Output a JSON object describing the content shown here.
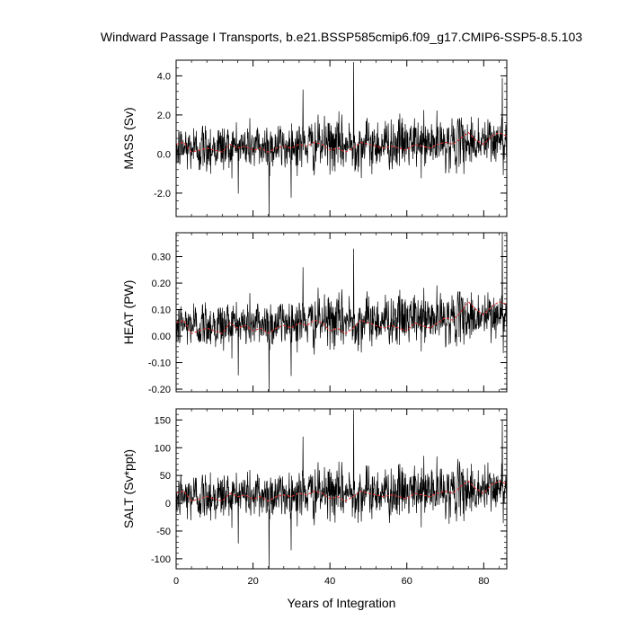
{
  "title": "Windward Passage I Transports, b.e21.BSSP585cmip6.f09_g17.CMIP6-SSP5-8.5.103",
  "chart_data": [
    {
      "type": "line",
      "ylabel": "MASS (Sv)",
      "xlim": [
        0,
        86
      ],
      "ylim": [
        -3.2,
        4.8
      ],
      "yticks": [
        -2.0,
        0.0,
        2.0,
        4.0
      ],
      "ytick_labels": [
        "-2.0",
        "0.0",
        "2.0",
        "4.0"
      ],
      "series": [
        {
          "color": "#000000",
          "kind": "monthly-noise",
          "base": 0.3,
          "sd": 0.75,
          "trend": 0.004,
          "spikes": [
            [
              46.2,
              4.7
            ],
            [
              24.2,
              -3.2
            ],
            [
              84.8,
              3.9
            ],
            [
              33.0,
              3.3
            ]
          ]
        },
        {
          "color": "#e03030",
          "kind": "smoothed-mean",
          "x": [
            0,
            2,
            4,
            6,
            8,
            10,
            12,
            14,
            16,
            18,
            20,
            22,
            24,
            26,
            28,
            30,
            32,
            34,
            36,
            38,
            40,
            42,
            44,
            46,
            48,
            50,
            52,
            54,
            56,
            58,
            60,
            62,
            64,
            66,
            68,
            70,
            72,
            74,
            76,
            78,
            80,
            82,
            84,
            86
          ],
          "y": [
            0.5,
            0.6,
            0.1,
            0.2,
            0.3,
            0.2,
            0.1,
            0.5,
            0.3,
            0.4,
            0.2,
            0.3,
            0.1,
            0.3,
            0.4,
            0.3,
            0.5,
            0.4,
            0.6,
            0.5,
            0.2,
            0.3,
            0.1,
            0.3,
            0.6,
            0.5,
            0.4,
            0.3,
            0.4,
            0.3,
            0.2,
            0.5,
            0.4,
            0.3,
            0.5,
            0.6,
            0.5,
            0.8,
            1.1,
            0.7,
            0.5,
            0.9,
            1.1,
            0.9
          ]
        }
      ]
    },
    {
      "type": "line",
      "ylabel": "HEAT (PW)",
      "xlim": [
        0,
        86
      ],
      "ylim": [
        -0.21,
        0.39
      ],
      "yticks": [
        -0.2,
        -0.1,
        0.0,
        0.1,
        0.2,
        0.3
      ],
      "ytick_labels": [
        "-0.20",
        "-0.10",
        "0.00",
        "0.10",
        "0.20",
        "0.30"
      ],
      "series": [
        {
          "color": "#000000",
          "kind": "monthly-noise",
          "base": 0.04,
          "sd": 0.055,
          "trend": 0.0004,
          "spikes": [
            [
              46.2,
              0.33
            ],
            [
              24.2,
              -0.21
            ],
            [
              84.8,
              0.39
            ],
            [
              33.0,
              0.26
            ]
          ]
        },
        {
          "color": "#e03030",
          "kind": "smoothed-mean",
          "x": [
            0,
            2,
            4,
            6,
            8,
            10,
            12,
            14,
            16,
            18,
            20,
            22,
            24,
            26,
            28,
            30,
            32,
            34,
            36,
            38,
            40,
            42,
            44,
            46,
            48,
            50,
            52,
            54,
            56,
            58,
            60,
            62,
            64,
            66,
            68,
            70,
            72,
            74,
            76,
            78,
            80,
            82,
            84,
            86
          ],
          "y": [
            0.05,
            0.06,
            0.01,
            0.02,
            0.03,
            0.02,
            0.01,
            0.05,
            0.03,
            0.04,
            0.02,
            0.03,
            0.01,
            0.03,
            0.04,
            0.03,
            0.05,
            0.04,
            0.06,
            0.05,
            0.02,
            0.03,
            0.01,
            0.03,
            0.06,
            0.05,
            0.04,
            0.03,
            0.04,
            0.03,
            0.02,
            0.05,
            0.04,
            0.03,
            0.05,
            0.07,
            0.06,
            0.09,
            0.13,
            0.1,
            0.08,
            0.11,
            0.13,
            0.12
          ]
        }
      ]
    },
    {
      "type": "line",
      "ylabel": "SALT (Sv*ppt)",
      "xlim": [
        0,
        86
      ],
      "ylim": [
        -118,
        170
      ],
      "yticks": [
        -100,
        -50,
        0,
        50,
        100,
        150
      ],
      "ytick_labels": [
        "-100",
        "-50",
        "0",
        "50",
        "100",
        "150"
      ],
      "xlabel": "Years of Integration",
      "xticks": [
        0,
        20,
        40,
        60,
        80
      ],
      "xtick_labels": [
        "0",
        "20",
        "40",
        "60",
        "80"
      ],
      "series": [
        {
          "color": "#000000",
          "kind": "monthly-noise",
          "base": 12,
          "sd": 27,
          "trend": 0.15,
          "spikes": [
            [
              46.2,
              168
            ],
            [
              24.2,
              -118
            ],
            [
              84.8,
              150
            ],
            [
              33.0,
              120
            ]
          ]
        },
        {
          "color": "#e03030",
          "kind": "smoothed-mean",
          "x": [
            0,
            2,
            4,
            6,
            8,
            10,
            12,
            14,
            16,
            18,
            20,
            22,
            24,
            26,
            28,
            30,
            32,
            34,
            36,
            38,
            40,
            42,
            44,
            46,
            48,
            50,
            52,
            54,
            56,
            58,
            60,
            62,
            64,
            66,
            68,
            70,
            72,
            74,
            76,
            78,
            80,
            82,
            84,
            86
          ],
          "y": [
            18,
            22,
            4,
            8,
            12,
            8,
            4,
            18,
            12,
            15,
            8,
            12,
            4,
            12,
            15,
            12,
            18,
            15,
            22,
            18,
            8,
            12,
            4,
            12,
            22,
            18,
            15,
            12,
            15,
            12,
            8,
            18,
            15,
            12,
            18,
            22,
            18,
            30,
            40,
            26,
            18,
            33,
            40,
            34
          ]
        }
      ]
    }
  ]
}
